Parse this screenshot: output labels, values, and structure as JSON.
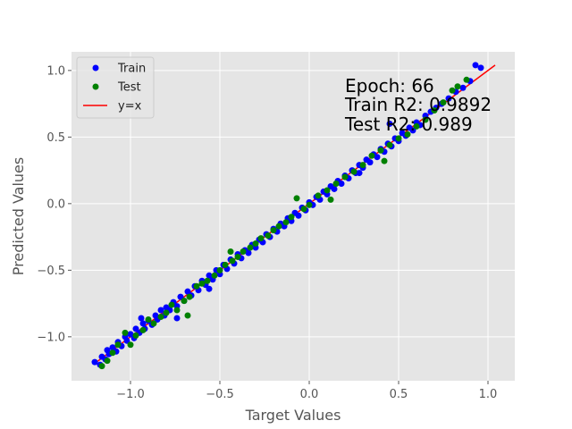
{
  "chart_data": {
    "type": "scatter",
    "title": "",
    "xlabel": "Target Values",
    "ylabel": "Predicted Values",
    "xlim": [
      -1.33,
      1.15
    ],
    "ylim": [
      -1.33,
      1.14
    ],
    "xticks": [
      -1.0,
      -0.5,
      0.0,
      0.5,
      1.0
    ],
    "xtick_labels": [
      "−1.0",
      "−0.5",
      "0.0",
      "0.5",
      "1.0"
    ],
    "yticks": [
      -1.0,
      -0.5,
      0.0,
      0.5,
      1.0
    ],
    "ytick_labels": [
      "−1.0",
      "−0.5",
      "0.0",
      "0.5",
      "1.0"
    ],
    "grid": true,
    "background": "#e5e5e5",
    "legend_position": "upper-left",
    "legend": [
      {
        "label": "Train",
        "kind": "marker",
        "color": "#0000ff"
      },
      {
        "label": "Test",
        "kind": "marker",
        "color": "#008000"
      },
      {
        "label": "y=x",
        "kind": "line",
        "color": "#ff0000"
      }
    ],
    "annotation": [
      "Epoch: 66",
      "Train R2: 0.9892",
      "Test  R2: 0.989"
    ],
    "reference_line": {
      "name": "y=x",
      "color": "#ff0000",
      "from": [
        -1.2,
        -1.2
      ],
      "to": [
        1.04,
        1.04
      ]
    },
    "series": [
      {
        "name": "Train",
        "color": "#0000ff",
        "points": [
          [
            -1.2,
            -1.19
          ],
          [
            -1.17,
            -1.21
          ],
          [
            -1.16,
            -1.15
          ],
          [
            -1.14,
            -1.17
          ],
          [
            -1.13,
            -1.1
          ],
          [
            -1.12,
            -1.13
          ],
          [
            -1.1,
            -1.08
          ],
          [
            -1.08,
            -1.11
          ],
          [
            -1.07,
            -1.04
          ],
          [
            -1.05,
            -1.07
          ],
          [
            -1.03,
            -1.0
          ],
          [
            -1.02,
            -1.03
          ],
          [
            -1.0,
            -0.98
          ],
          [
            -0.98,
            -1.01
          ],
          [
            -0.97,
            -0.94
          ],
          [
            -0.95,
            -0.97
          ],
          [
            -0.93,
            -0.9
          ],
          [
            -0.92,
            -0.94
          ],
          [
            -0.9,
            -0.88
          ],
          [
            -0.88,
            -0.91
          ],
          [
            -0.86,
            -0.84
          ],
          [
            -0.85,
            -0.87
          ],
          [
            -0.83,
            -0.8
          ],
          [
            -0.81,
            -0.84
          ],
          [
            -0.8,
            -0.78
          ],
          [
            -0.78,
            -0.8
          ],
          [
            -0.76,
            -0.74
          ],
          [
            -0.74,
            -0.77
          ],
          [
            -0.72,
            -0.7
          ],
          [
            -0.7,
            -0.73
          ],
          [
            -0.68,
            -0.66
          ],
          [
            -0.66,
            -0.69
          ],
          [
            -0.64,
            -0.62
          ],
          [
            -0.62,
            -0.65
          ],
          [
            -0.6,
            -0.58
          ],
          [
            -0.58,
            -0.61
          ],
          [
            -0.56,
            -0.54
          ],
          [
            -0.54,
            -0.57
          ],
          [
            -0.52,
            -0.5
          ],
          [
            -0.5,
            -0.53
          ],
          [
            -0.48,
            -0.46
          ],
          [
            -0.46,
            -0.49
          ],
          [
            -0.44,
            -0.42
          ],
          [
            -0.42,
            -0.45
          ],
          [
            -0.4,
            -0.38
          ],
          [
            -0.38,
            -0.41
          ],
          [
            -0.36,
            -0.35
          ],
          [
            -0.34,
            -0.37
          ],
          [
            -0.32,
            -0.31
          ],
          [
            -0.3,
            -0.33
          ],
          [
            -0.28,
            -0.27
          ],
          [
            -0.26,
            -0.29
          ],
          [
            -0.24,
            -0.23
          ],
          [
            -0.22,
            -0.25
          ],
          [
            -0.2,
            -0.19
          ],
          [
            -0.18,
            -0.21
          ],
          [
            -0.16,
            -0.15
          ],
          [
            -0.14,
            -0.17
          ],
          [
            -0.12,
            -0.11
          ],
          [
            -0.1,
            -0.13
          ],
          [
            -0.08,
            -0.07
          ],
          [
            -0.06,
            -0.09
          ],
          [
            -0.04,
            -0.03
          ],
          [
            -0.02,
            -0.05
          ],
          [
            0.0,
            0.01
          ],
          [
            0.02,
            -0.01
          ],
          [
            0.04,
            0.05
          ],
          [
            0.06,
            0.03
          ],
          [
            0.08,
            0.09
          ],
          [
            0.1,
            0.07
          ],
          [
            0.12,
            0.13
          ],
          [
            0.14,
            0.11
          ],
          [
            0.16,
            0.17
          ],
          [
            0.18,
            0.15
          ],
          [
            0.2,
            0.21
          ],
          [
            0.22,
            0.19
          ],
          [
            0.24,
            0.25
          ],
          [
            0.26,
            0.23
          ],
          [
            0.28,
            0.29
          ],
          [
            0.3,
            0.27
          ],
          [
            0.32,
            0.33
          ],
          [
            0.34,
            0.31
          ],
          [
            0.36,
            0.37
          ],
          [
            0.38,
            0.35
          ],
          [
            0.4,
            0.41
          ],
          [
            0.42,
            0.39
          ],
          [
            0.44,
            0.45
          ],
          [
            0.46,
            0.43
          ],
          [
            0.48,
            0.49
          ],
          [
            0.5,
            0.47
          ],
          [
            0.52,
            0.53
          ],
          [
            0.54,
            0.51
          ],
          [
            0.56,
            0.57
          ],
          [
            0.58,
            0.55
          ],
          [
            0.6,
            0.61
          ],
          [
            0.62,
            0.59
          ],
          [
            0.65,
            0.66
          ],
          [
            0.68,
            0.69
          ],
          [
            0.71,
            0.72
          ],
          [
            0.74,
            0.75
          ],
          [
            0.78,
            0.79
          ],
          [
            0.82,
            0.84
          ],
          [
            0.86,
            0.87
          ],
          [
            0.9,
            0.92
          ],
          [
            0.93,
            1.04
          ],
          [
            0.96,
            1.02
          ],
          [
            0.45,
            0.6
          ],
          [
            0.28,
            0.23
          ],
          [
            -0.74,
            -0.86
          ],
          [
            -0.94,
            -0.86
          ],
          [
            -0.56,
            -0.64
          ]
        ]
      },
      {
        "name": "Test",
        "color": "#008000",
        "points": [
          [
            -1.16,
            -1.22
          ],
          [
            -1.13,
            -1.18
          ],
          [
            -1.1,
            -1.12
          ],
          [
            -1.07,
            -1.06
          ],
          [
            -1.03,
            -0.97
          ],
          [
            -1.0,
            -1.06
          ],
          [
            -0.97,
            -0.99
          ],
          [
            -0.93,
            -0.95
          ],
          [
            -0.9,
            -0.87
          ],
          [
            -0.87,
            -0.9
          ],
          [
            -0.83,
            -0.85
          ],
          [
            -0.8,
            -0.82
          ],
          [
            -0.77,
            -0.76
          ],
          [
            -0.74,
            -0.8
          ],
          [
            -0.7,
            -0.73
          ],
          [
            -0.67,
            -0.7
          ],
          [
            -0.63,
            -0.62
          ],
          [
            -0.6,
            -0.6
          ],
          [
            -0.57,
            -0.58
          ],
          [
            -0.53,
            -0.54
          ],
          [
            -0.5,
            -0.5
          ],
          [
            -0.47,
            -0.46
          ],
          [
            -0.43,
            -0.43
          ],
          [
            -0.4,
            -0.4
          ],
          [
            -0.37,
            -0.36
          ],
          [
            -0.33,
            -0.33
          ],
          [
            -0.3,
            -0.3
          ],
          [
            -0.27,
            -0.26
          ],
          [
            -0.23,
            -0.24
          ],
          [
            -0.2,
            -0.2
          ],
          [
            -0.17,
            -0.17
          ],
          [
            -0.13,
            -0.14
          ],
          [
            -0.1,
            -0.1
          ],
          [
            -0.07,
            0.04
          ],
          [
            -0.03,
            -0.04
          ],
          [
            0.0,
            -0.01
          ],
          [
            0.05,
            0.06
          ],
          [
            0.1,
            0.1
          ],
          [
            0.15,
            0.15
          ],
          [
            0.2,
            0.2
          ],
          [
            0.25,
            0.24
          ],
          [
            0.3,
            0.29
          ],
          [
            0.35,
            0.36
          ],
          [
            0.4,
            0.4
          ],
          [
            0.45,
            0.44
          ],
          [
            0.5,
            0.49
          ],
          [
            0.55,
            0.52
          ],
          [
            0.6,
            0.58
          ],
          [
            0.65,
            0.63
          ],
          [
            0.7,
            0.7
          ],
          [
            0.75,
            0.76
          ],
          [
            0.8,
            0.85
          ],
          [
            0.83,
            0.88
          ],
          [
            0.88,
            0.93
          ],
          [
            -0.68,
            -0.84
          ],
          [
            -0.44,
            -0.36
          ],
          [
            0.12,
            0.03
          ],
          [
            0.42,
            0.32
          ]
        ]
      }
    ]
  }
}
